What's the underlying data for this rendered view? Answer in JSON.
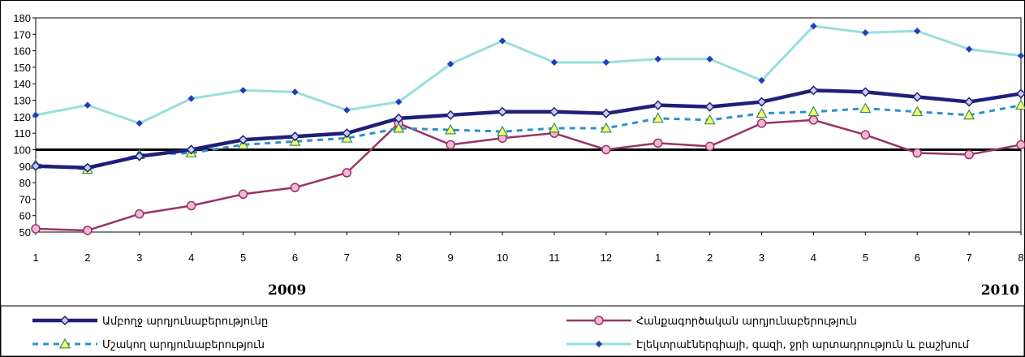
{
  "chart_data": {
    "type": "line",
    "x": [
      "1",
      "2",
      "3",
      "4",
      "5",
      "6",
      "7",
      "8",
      "9",
      "10",
      "11",
      "12",
      "1",
      "2",
      "3",
      "4",
      "5",
      "6",
      "7",
      "8"
    ],
    "year_labels": [
      "2009",
      "2010"
    ],
    "ylim": [
      50,
      180
    ],
    "yticks": [
      50,
      60,
      70,
      80,
      90,
      100,
      110,
      120,
      130,
      140,
      150,
      160,
      170,
      180
    ],
    "reference_line": 100,
    "legend_position": "bottom",
    "grid": false,
    "series": [
      {
        "name": "Ամբողջ արդյունաբերությունը",
        "color": "#1f1f7a",
        "marker": "diamond",
        "values": [
          90,
          89,
          96,
          100,
          106,
          108,
          110,
          119,
          121,
          123,
          123,
          122,
          127,
          126,
          129,
          136,
          135,
          132,
          129,
          134
        ]
      },
      {
        "name": "Հանքագործական արդյունաբերություն",
        "color": "#993366",
        "marker": "circle",
        "values": [
          52,
          51,
          61,
          66,
          73,
          77,
          86,
          116,
          103,
          107,
          110,
          100,
          104,
          102,
          116,
          118,
          109,
          98,
          97,
          103
        ]
      },
      {
        "name": "Մշակող արդյունաբերություն",
        "color": "#2f8fce",
        "marker": "triangle",
        "values": [
          91,
          88,
          97,
          98,
          103,
          105,
          107,
          113,
          112,
          111,
          113,
          113,
          119,
          118,
          122,
          123,
          125,
          123,
          121,
          127
        ]
      },
      {
        "name": "Էլեկտրաէներգիայի, գազի, ջրի արտադրություն և բաշխում",
        "color": "#99dddd",
        "marker": "small-diamond",
        "values": [
          121,
          127,
          116,
          131,
          136,
          135,
          124,
          129,
          152,
          166,
          153,
          153,
          155,
          155,
          142,
          175,
          171,
          172,
          161,
          157
        ]
      }
    ]
  }
}
